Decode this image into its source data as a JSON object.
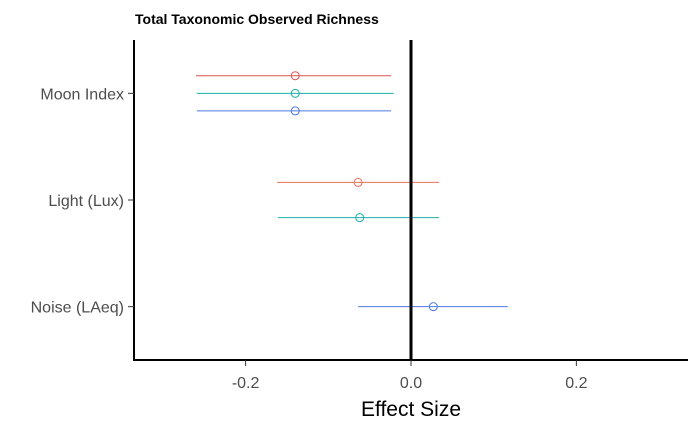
{
  "chart_data": {
    "type": "scatter",
    "title": "Total Taxonomic Observed Richness",
    "xlabel": "Effect Size",
    "ylabel": "",
    "xlim": [
      -0.335,
      0.335
    ],
    "x_ticks": [
      -0.2,
      0.0,
      0.2
    ],
    "x_tick_labels": [
      "-0.2",
      "0.0",
      "0.2"
    ],
    "categories": [
      "Moon Index",
      "Light (Lux)",
      "Noise (LAeq)"
    ],
    "reference_line_x": 0,
    "grid": false,
    "legend": "none",
    "series": [
      {
        "color": "#d9534f",
        "points": [
          {
            "category": "Moon Index",
            "x": -0.14,
            "lower": -0.26,
            "upper": -0.024
          }
        ]
      },
      {
        "color": "#e8705a",
        "points": [
          {
            "category": "Light (Lux)",
            "x": -0.064,
            "lower": -0.162,
            "upper": 0.034
          }
        ]
      },
      {
        "color": "#1ab0a8",
        "points": [
          {
            "category": "Moon Index",
            "x": -0.14,
            "lower": -0.259,
            "upper": -0.021
          },
          {
            "category": "Light (Lux)",
            "x": -0.062,
            "lower": -0.161,
            "upper": 0.034
          }
        ]
      },
      {
        "color": "#4a7ae0",
        "points": [
          {
            "category": "Moon Index",
            "x": -0.14,
            "lower": -0.259,
            "upper": -0.024
          },
          {
            "category": "Noise (LAeq)",
            "x": 0.027,
            "lower": -0.064,
            "upper": 0.117
          }
        ]
      }
    ]
  }
}
